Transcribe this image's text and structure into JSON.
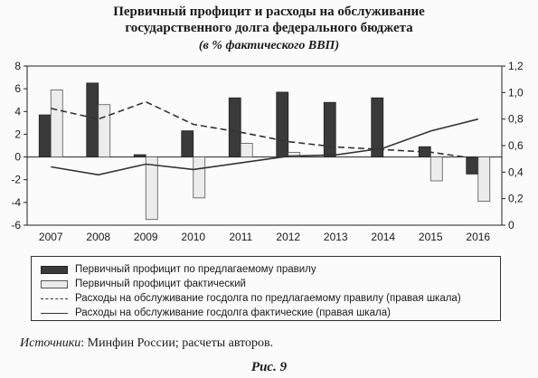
{
  "title_line1": "Первичный профицит и расходы на обслуживание",
  "title_line2": "государственного долга федерального бюджета",
  "subtitle": "(в % фактического ВВП)",
  "source_label": "Источники",
  "source_text": ": Минфин России; расчеты авторов.",
  "figure_label": "Рис. 9",
  "colors": {
    "bar_dark": "#3a3a3a",
    "bar_light": "#ececec",
    "line": "#333333"
  },
  "chart_data": {
    "type": "bar",
    "categories": [
      "2007",
      "2008",
      "2009",
      "2010",
      "2011",
      "2012",
      "2013",
      "2014",
      "2015",
      "2016"
    ],
    "ylim_left": [
      -6,
      8
    ],
    "left_ticks": [
      "8",
      "6",
      "4",
      "2",
      "0",
      "-2",
      "-4",
      "-6"
    ],
    "ylim_right": [
      0,
      1.2
    ],
    "right_ticks": [
      "1,2",
      "1,0",
      "0,8",
      "0,6",
      "0,4",
      "0,2",
      "0"
    ],
    "grid": false,
    "legend_position": "bottom",
    "series": [
      {
        "name": "Первичный профицит по предлагаемому правилу",
        "type": "bar",
        "axis": "left",
        "values": [
          3.7,
          6.5,
          0.2,
          2.3,
          5.2,
          5.7,
          4.8,
          5.2,
          0.9,
          -1.5
        ]
      },
      {
        "name": "Первичный профицит фактический",
        "type": "bar",
        "axis": "left",
        "values": [
          5.9,
          4.6,
          -5.5,
          -3.6,
          1.2,
          0.4,
          0.0,
          0.0,
          -2.1,
          -3.9
        ]
      },
      {
        "name": "Расходы на обслуживание госдолга по предлагаемому правилу (правая шкала)",
        "type": "line",
        "style": "dashed",
        "axis": "right",
        "values": [
          0.88,
          0.8,
          0.93,
          0.76,
          0.7,
          0.63,
          0.59,
          0.57,
          0.55,
          0.5
        ]
      },
      {
        "name": "Расходы на обслуживание госдолга фактические (правая шкала)",
        "type": "line",
        "style": "solid",
        "axis": "right",
        "values": [
          0.44,
          0.38,
          0.46,
          0.42,
          0.47,
          0.52,
          0.53,
          0.58,
          0.71,
          0.8
        ]
      }
    ]
  }
}
